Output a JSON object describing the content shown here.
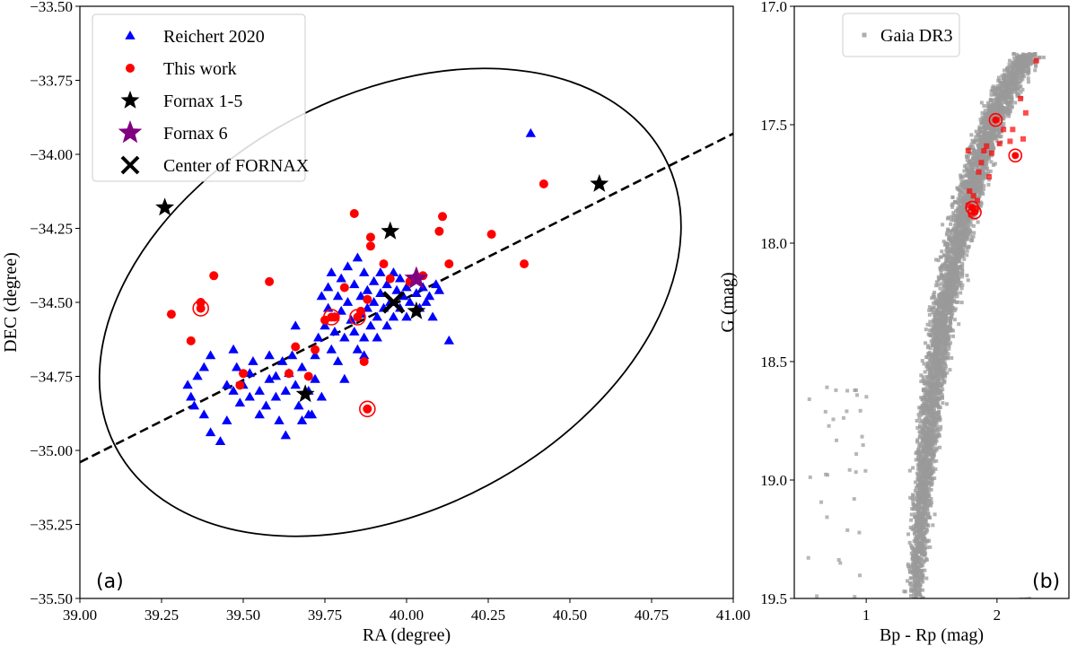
{
  "chart_data": [
    {
      "type": "scatter",
      "panel_label": "(a)",
      "xlabel": "RA (degree)",
      "ylabel": "DEC (degree)",
      "xlim": [
        39.0,
        41.0
      ],
      "ylim": [
        -35.5,
        -33.5
      ],
      "yinvert": false,
      "xticks": [
        39.0,
        39.25,
        39.5,
        39.75,
        40.0,
        40.25,
        40.5,
        40.75,
        41.0
      ],
      "xtick_labels": [
        "39.00",
        "39.25",
        "39.50",
        "39.75",
        "40.00",
        "40.25",
        "40.50",
        "40.75",
        "41.00"
      ],
      "yticks": [
        -35.5,
        -35.25,
        -35.0,
        -34.75,
        -34.5,
        -34.25,
        -34.0,
        -33.75,
        -33.5
      ],
      "ytick_labels": [
        "−35.50",
        "−35.25",
        "−35.00",
        "−34.75",
        "−34.50",
        "−34.25",
        "−34.00",
        "−33.75",
        "−33.50"
      ],
      "legend_position": "top-left",
      "legend": [
        {
          "label": "Reichert 2020",
          "marker": "triangle",
          "color": "#0000ff"
        },
        {
          "label": "This work",
          "marker": "circle",
          "color": "#ff0000"
        },
        {
          "label": "Fornax 1-5",
          "marker": "star",
          "color": "#000000"
        },
        {
          "label": "Fornax 6",
          "marker": "star",
          "color": "#800080"
        },
        {
          "label": "Center of FORNAX",
          "marker": "x",
          "color": "#000000"
        }
      ],
      "ellipse": {
        "center": [
          39.95,
          -34.5
        ],
        "semi_axis_ra": 0.95,
        "semi_axis_dec": 0.7,
        "angle_deg": 28
      },
      "dashed_line": {
        "points": [
          [
            39.0,
            -35.04
          ],
          [
            41.0,
            -33.93
          ]
        ]
      },
      "series": [
        {
          "name": "Reichert 2020",
          "marker": "triangle",
          "color": "#0000ff",
          "points": [
            [
              40.38,
              -33.93
            ],
            [
              39.33,
              -34.78
            ],
            [
              39.34,
              -34.82
            ],
            [
              39.35,
              -34.85
            ],
            [
              39.36,
              -34.75
            ],
            [
              39.4,
              -34.68
            ],
            [
              39.38,
              -34.72
            ],
            [
              39.38,
              -34.88
            ],
            [
              39.4,
              -34.94
            ],
            [
              39.43,
              -34.97
            ],
            [
              39.45,
              -34.9
            ],
            [
              39.48,
              -34.72
            ],
            [
              39.47,
              -34.8
            ],
            [
              39.49,
              -34.84
            ],
            [
              39.5,
              -34.78
            ],
            [
              39.52,
              -34.82
            ],
            [
              39.53,
              -34.7
            ],
            [
              39.55,
              -34.88
            ],
            [
              39.55,
              -34.8
            ],
            [
              39.57,
              -34.85
            ],
            [
              39.58,
              -34.76
            ],
            [
              39.6,
              -34.75
            ],
            [
              39.6,
              -34.82
            ],
            [
              39.61,
              -34.9
            ],
            [
              39.62,
              -34.7
            ],
            [
              39.63,
              -34.95
            ],
            [
              39.63,
              -34.8
            ],
            [
              39.64,
              -34.74
            ],
            [
              39.65,
              -34.68
            ],
            [
              39.66,
              -34.78
            ],
            [
              39.67,
              -34.85
            ],
            [
              39.68,
              -34.72
            ],
            [
              39.7,
              -34.8
            ],
            [
              39.71,
              -34.88
            ],
            [
              39.72,
              -34.76
            ],
            [
              39.72,
              -34.68
            ],
            [
              39.73,
              -34.62
            ],
            [
              39.74,
              -34.82
            ],
            [
              39.74,
              -34.48
            ],
            [
              39.75,
              -34.58
            ],
            [
              39.76,
              -34.45
            ],
            [
              39.76,
              -34.52
            ],
            [
              39.77,
              -34.4
            ],
            [
              39.78,
              -34.55
            ],
            [
              39.78,
              -34.6
            ],
            [
              39.79,
              -34.48
            ],
            [
              39.8,
              -34.42
            ],
            [
              39.8,
              -34.53
            ],
            [
              39.81,
              -34.62
            ],
            [
              39.82,
              -34.38
            ],
            [
              39.82,
              -34.5
            ],
            [
              39.83,
              -34.56
            ],
            [
              39.84,
              -34.44
            ],
            [
              39.84,
              -34.6
            ],
            [
              39.85,
              -34.35
            ],
            [
              39.86,
              -34.48
            ],
            [
              39.86,
              -34.54
            ],
            [
              39.87,
              -34.4
            ],
            [
              39.87,
              -34.62
            ],
            [
              39.88,
              -34.46
            ],
            [
              39.88,
              -34.52
            ],
            [
              39.89,
              -34.58
            ],
            [
              39.9,
              -34.43
            ],
            [
              39.9,
              -34.5
            ],
            [
              39.91,
              -34.55
            ],
            [
              39.91,
              -34.62
            ],
            [
              39.92,
              -34.4
            ],
            [
              39.92,
              -34.47
            ],
            [
              39.93,
              -34.52
            ],
            [
              39.94,
              -34.58
            ],
            [
              39.94,
              -34.44
            ],
            [
              39.95,
              -34.5
            ],
            [
              39.96,
              -34.4
            ],
            [
              39.96,
              -34.55
            ],
            [
              39.97,
              -34.46
            ],
            [
              39.98,
              -34.52
            ],
            [
              39.98,
              -34.42
            ],
            [
              39.99,
              -34.48
            ],
            [
              40.0,
              -34.45
            ],
            [
              40.0,
              -34.55
            ],
            [
              40.01,
              -34.5
            ],
            [
              40.02,
              -34.42
            ],
            [
              40.03,
              -34.47
            ],
            [
              40.04,
              -34.52
            ],
            [
              40.05,
              -34.45
            ],
            [
              40.06,
              -34.5
            ],
            [
              40.07,
              -34.48
            ],
            [
              40.08,
              -34.55
            ],
            [
              40.09,
              -34.44
            ],
            [
              40.1,
              -34.46
            ],
            [
              40.13,
              -34.63
            ],
            [
              39.77,
              -34.66
            ],
            [
              39.79,
              -34.7
            ],
            [
              39.81,
              -34.76
            ],
            [
              39.7,
              -34.88
            ],
            [
              39.68,
              -34.9
            ],
            [
              39.66,
              -34.58
            ],
            [
              39.58,
              -34.68
            ],
            [
              39.45,
              -34.78
            ],
            [
              39.47,
              -34.66
            ],
            [
              39.52,
              -34.74
            ],
            [
              39.85,
              -34.66
            ],
            [
              39.87,
              -34.68
            ]
          ]
        },
        {
          "name": "This work",
          "marker": "circle",
          "color": "#ff0000",
          "points": [
            [
              40.42,
              -34.1
            ],
            [
              40.36,
              -34.37
            ],
            [
              40.26,
              -34.27
            ],
            [
              40.13,
              -34.37
            ],
            [
              40.11,
              -34.21
            ],
            [
              40.1,
              -34.26
            ],
            [
              40.05,
              -34.41
            ],
            [
              40.01,
              -34.43
            ],
            [
              39.95,
              -34.42
            ],
            [
              39.93,
              -34.37
            ],
            [
              39.89,
              -34.28
            ],
            [
              39.89,
              -34.31
            ],
            [
              39.88,
              -34.49
            ],
            [
              39.87,
              -34.7
            ],
            [
              39.86,
              -34.53
            ],
            [
              39.84,
              -34.2
            ],
            [
              39.81,
              -34.45
            ],
            [
              39.78,
              -34.55
            ],
            [
              39.75,
              -34.56
            ],
            [
              39.72,
              -34.66
            ],
            [
              39.7,
              -34.75
            ],
            [
              39.66,
              -34.65
            ],
            [
              39.64,
              -34.74
            ],
            [
              39.58,
              -34.43
            ],
            [
              39.5,
              -34.74
            ],
            [
              39.49,
              -34.78
            ],
            [
              39.41,
              -34.41
            ],
            [
              39.37,
              -34.5
            ],
            [
              39.34,
              -34.63
            ],
            [
              39.28,
              -34.54
            ],
            [
              39.37,
              -34.52
            ],
            [
              39.77,
              -34.55
            ],
            [
              39.85,
              -34.55
            ],
            [
              39.88,
              -34.86
            ]
          ]
        },
        {
          "name": "This work (circled)",
          "marker": "ring",
          "color": "#ff0000",
          "points": [
            [
              39.37,
              -34.52
            ],
            [
              39.77,
              -34.55
            ],
            [
              39.85,
              -34.55
            ],
            [
              39.88,
              -34.86
            ]
          ]
        },
        {
          "name": "Fornax 1-5",
          "marker": "star",
          "color": "#000000",
          "points": [
            [
              39.26,
              -34.18
            ],
            [
              39.95,
              -34.26
            ],
            [
              40.03,
              -34.53
            ],
            [
              40.59,
              -34.1
            ],
            [
              39.69,
              -34.81
            ]
          ]
        },
        {
          "name": "Fornax 6",
          "marker": "star",
          "color": "#800080",
          "points": [
            [
              40.03,
              -34.42
            ]
          ]
        },
        {
          "name": "Center of FORNAX",
          "marker": "x",
          "color": "#000000",
          "points": [
            [
              39.96,
              -34.5
            ]
          ]
        }
      ]
    },
    {
      "type": "scatter",
      "panel_label": "(b)",
      "xlabel": "Bp - Rp (mag)",
      "ylabel": "G (mag)",
      "xlim": [
        0.45,
        2.55
      ],
      "ylim": [
        19.5,
        17.0
      ],
      "yinvert": true,
      "xticks": [
        1,
        2
      ],
      "xtick_labels": [
        "1",
        "2"
      ],
      "yticks": [
        17.0,
        17.5,
        18.0,
        18.5,
        19.0,
        19.5
      ],
      "ytick_labels": [
        "17.0",
        "17.5",
        "18.0",
        "18.5",
        "19.0",
        "19.5"
      ],
      "legend_position": "top-left",
      "legend": [
        {
          "label": "Gaia DR3",
          "marker": "square",
          "color": "#999999"
        }
      ],
      "series": [
        {
          "name": "Gaia DR3",
          "marker": "square",
          "color": "#999999",
          "color_alpha": 0.75,
          "note": "dense red giant branch; density envelope as ridge colour vs G",
          "ridge": [
            [
              19.5,
              1.38
            ],
            [
              19.3,
              1.4
            ],
            [
              19.1,
              1.43
            ],
            [
              18.9,
              1.46
            ],
            [
              18.7,
              1.5
            ],
            [
              18.5,
              1.54
            ],
            [
              18.3,
              1.59
            ],
            [
              18.1,
              1.66
            ],
            [
              17.9,
              1.74
            ],
            [
              17.7,
              1.84
            ],
            [
              17.5,
              1.96
            ],
            [
              17.3,
              2.12
            ],
            [
              17.2,
              2.25
            ]
          ],
          "points_count": 4200
        },
        {
          "name": "This work",
          "marker": "square",
          "color": "#ff0000",
          "color_alpha": 0.7,
          "points": [
            [
              2.3,
              17.23
            ],
            [
              2.18,
              17.39
            ],
            [
              2.22,
              17.45
            ],
            [
              2.12,
              17.52
            ],
            [
              2.02,
              17.58
            ],
            [
              2.1,
              17.57
            ],
            [
              1.96,
              17.62
            ],
            [
              1.9,
              17.61
            ],
            [
              1.92,
              17.59
            ],
            [
              1.88,
              17.66
            ],
            [
              1.94,
              17.72
            ],
            [
              2.2,
              17.56
            ],
            [
              2.05,
              17.52
            ],
            [
              1.78,
              17.61
            ],
            [
              1.86,
              17.7
            ],
            [
              1.79,
              17.78
            ],
            [
              1.82,
              17.8
            ],
            [
              1.85,
              17.82
            ],
            [
              1.78,
              17.84
            ],
            [
              1.8,
              17.88
            ],
            [
              1.84,
              17.86
            ],
            [
              2.0,
              17.48
            ],
            [
              2.14,
              17.63
            ]
          ]
        },
        {
          "name": "This work (circled)",
          "marker": "ring",
          "color": "#ff0000",
          "points": [
            [
              1.99,
              17.48
            ],
            [
              2.14,
              17.63
            ],
            [
              1.81,
              17.85
            ],
            [
              1.83,
              17.87
            ]
          ]
        }
      ]
    }
  ]
}
